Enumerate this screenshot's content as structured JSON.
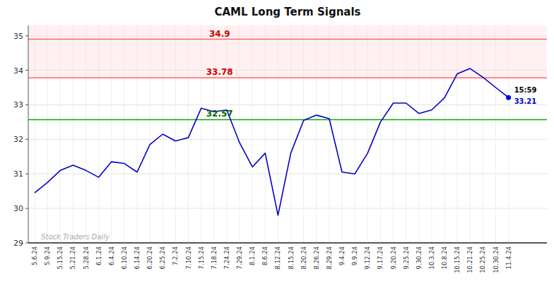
{
  "chart_data": {
    "type": "line",
    "title": "CAML Long Term Signals",
    "categories": [
      "5.6.24",
      "5.9.24",
      "5.15.24",
      "5.21.24",
      "5.28.24",
      "6.1.24",
      "6.4.24",
      "6.10.24",
      "6.14.24",
      "6.20.24",
      "6.25.24",
      "7.2.24",
      "7.10.24",
      "7.15.24",
      "7.18.24",
      "7.24.24",
      "7.29.24",
      "8.1.24",
      "8.6.24",
      "8.12.24",
      "8.15.24",
      "8.20.24",
      "8.26.24",
      "8.29.24",
      "9.4.24",
      "9.9.24",
      "9.12.24",
      "9.17.24",
      "9.20.24",
      "9.25.24",
      "9.30.24",
      "10.3.24",
      "10.8.24",
      "10.15.24",
      "10.21.24",
      "10.25.24",
      "10.30.24",
      "11.4.24"
    ],
    "values": [
      30.45,
      30.75,
      31.1,
      31.25,
      31.1,
      30.9,
      31.35,
      31.3,
      31.05,
      31.85,
      32.15,
      31.95,
      32.05,
      32.9,
      32.8,
      32.85,
      31.9,
      31.2,
      31.6,
      29.8,
      31.6,
      32.55,
      32.7,
      32.6,
      31.05,
      31.0,
      31.6,
      32.5,
      33.05,
      33.05,
      32.75,
      32.85,
      33.2,
      33.9,
      34.05,
      33.8,
      33.5,
      33.21
    ],
    "color": "#0000cc",
    "ylim": [
      29,
      35.3
    ],
    "yticks": [
      29,
      30,
      31,
      32,
      33,
      34,
      35
    ],
    "grid": true,
    "reference_lines": [
      {
        "value": 34.9,
        "label": "34.9",
        "color": "#ff6666",
        "label_color": "#cc0000"
      },
      {
        "value": 33.78,
        "label": "33.78",
        "color": "#ff6666",
        "label_color": "#cc0000"
      },
      {
        "value": 32.57,
        "label": "32.57",
        "color": "#00aa00",
        "label_color": "#006600"
      }
    ],
    "band": {
      "from": 33.78,
      "color": "#ffdddd"
    },
    "end_labels": [
      {
        "text": "15:59",
        "color": "#000000"
      },
      {
        "text": "33.21",
        "color": "#0000cc"
      }
    ],
    "watermark": "Stock Traders Daily"
  }
}
